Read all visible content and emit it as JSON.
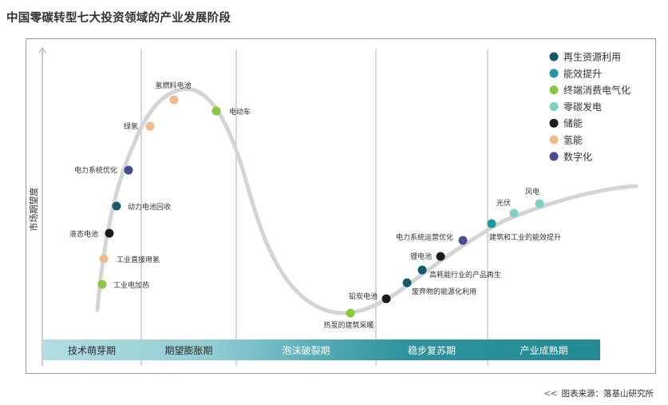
{
  "title": "中国零碳转型七大投资领域的产业发展阶段",
  "source": "图表来源：落基山研究所",
  "source_icon": "double-chevron-left-icon",
  "chart_data": {
    "type": "hype-cycle",
    "ylabel": "市场期望度",
    "xlabel": "",
    "phases": [
      "技术萌芽期",
      "期望膨胀期",
      "泡沫破裂期",
      "稳步复苏期",
      "产业成熟期"
    ],
    "legend_position": "top-right",
    "grid_vertical": true,
    "curve_color": "#d4d4d4",
    "categories": [
      {
        "name": "再生资源利用",
        "color": "#155a6b"
      },
      {
        "name": "能效提升",
        "color": "#1e97a0"
      },
      {
        "name": "终端消费电气化",
        "color": "#8cc63f"
      },
      {
        "name": "零碳发电",
        "color": "#7ed0c5"
      },
      {
        "name": "储能",
        "color": "#1c1c1c"
      },
      {
        "name": "氢能",
        "color": "#f2b98a"
      },
      {
        "name": "数字化",
        "color": "#444c94"
      }
    ],
    "points": [
      {
        "label": "工业电加热",
        "category": "终端消费电气化"
      },
      {
        "label": "工业直接用氢",
        "category": "氢能"
      },
      {
        "label": "液态电池",
        "category": "储能"
      },
      {
        "label": "动力电池回收",
        "category": "再生资源利用"
      },
      {
        "label": "电力系统优化",
        "category": "数字化"
      },
      {
        "label": "绿氢",
        "category": "氢能"
      },
      {
        "label": "氢燃料电池",
        "category": "氢能"
      },
      {
        "label": "电动车",
        "category": "终端消费电气化"
      },
      {
        "label": "热泵的建筑采暖",
        "category": "终端消费电气化"
      },
      {
        "label": "铅炭电池",
        "category": "储能"
      },
      {
        "label": "废弃物的能源化利用",
        "category": "再生资源利用"
      },
      {
        "label": "高耗能行业的产品再生",
        "category": "再生资源利用"
      },
      {
        "label": "锂电池",
        "category": "储能"
      },
      {
        "label": "电力系统运营优化",
        "category": "数字化"
      },
      {
        "label": "建筑和工业的能效提升",
        "category": "能效提升"
      },
      {
        "label": "光伏",
        "category": "零碳发电"
      },
      {
        "label": "风电",
        "category": "零碳发电"
      }
    ]
  }
}
